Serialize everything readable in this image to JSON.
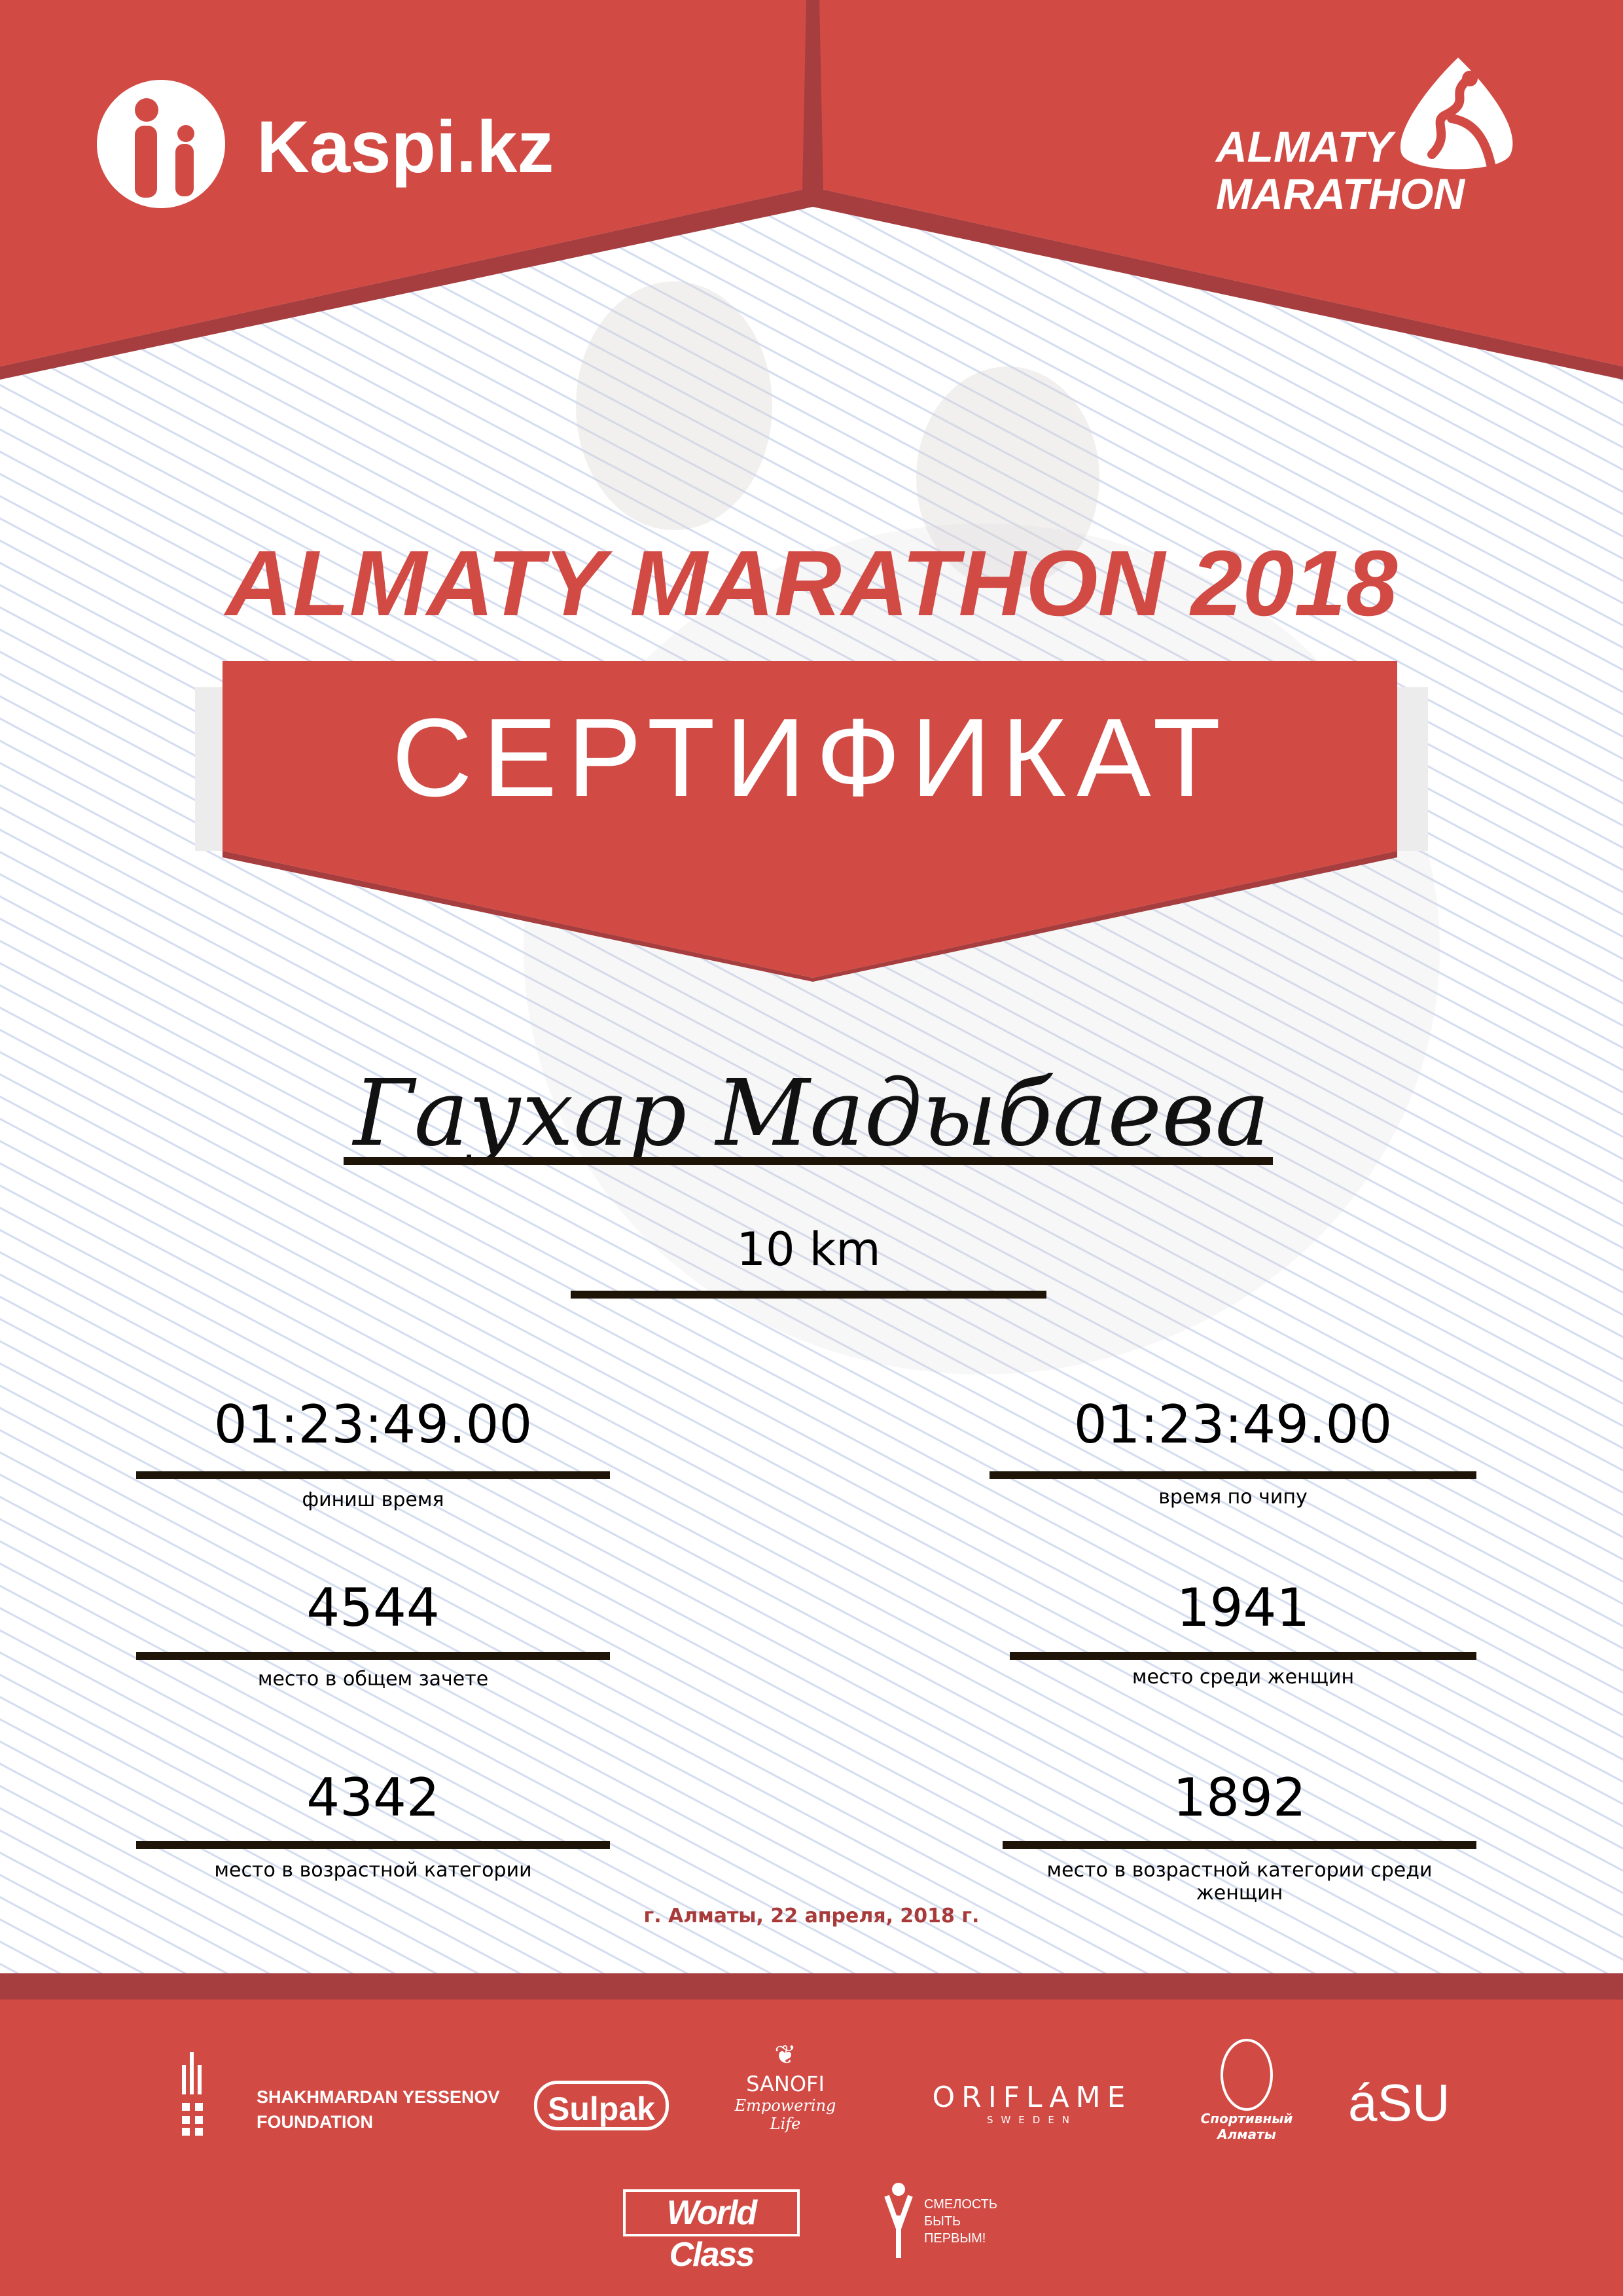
{
  "header": {
    "sponsor_logo": "Kaspi.kz",
    "event_logo_line1": "ALMATY",
    "event_logo_line2": "MARATHON"
  },
  "title": "ALMATY MARATHON 2018",
  "banner": "СЕРТИФИКАТ",
  "participant": {
    "name": "Гаухар Мадыбаева",
    "distance": "10 km"
  },
  "results": {
    "left": [
      {
        "value": "01:23:49.00",
        "label": "финиш время"
      },
      {
        "value": "4544",
        "label": "место в общем зачете"
      },
      {
        "value": "4342",
        "label": "место в возрастной категории"
      }
    ],
    "right": [
      {
        "value": "01:23:49.00",
        "label": "время по чипу"
      },
      {
        "value": "1941",
        "label": "место среди женщин"
      },
      {
        "value": "1892",
        "label": "место в возрастной категории среди женщин"
      }
    ]
  },
  "date_place": "г. Алматы, 22 апреля, 2018 г.",
  "footer": {
    "partners": [
      {
        "line1": "SHAKHMARDAN YESSENOV",
        "line2": "FOUNDATION"
      },
      {
        "name": "Sulpak"
      },
      {
        "name": "SANOFI",
        "tagline": "Empowering Life"
      },
      {
        "name": "ORIFLAME",
        "tagline": "SWEDEN"
      },
      {
        "name": "Спортивный Алматы"
      },
      {
        "name": "áSU"
      },
      {
        "name": "World Class"
      },
      {
        "name": "СМЕЛОСТЬ БЫТЬ ПЕРВЫМ!"
      }
    ]
  },
  "colors": {
    "brand_red": "#d24a44",
    "dark_red": "#a63d3e",
    "date_red": "#a83a3a"
  }
}
